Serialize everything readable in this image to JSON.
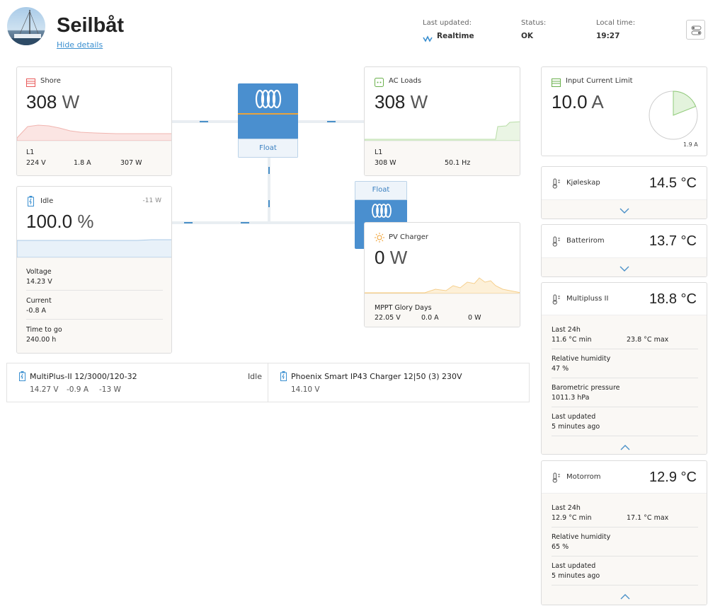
{
  "header": {
    "title": "Seilbåt",
    "hide_details": "Hide details",
    "last_updated_label": "Last updated:",
    "last_updated_value": "Realtime",
    "status_label": "Status:",
    "status_value": "OK",
    "local_time_label": "Local time:",
    "local_time_value": "19:27"
  },
  "shore": {
    "title": "Shore",
    "value": "308",
    "unit": "W",
    "phase": "L1",
    "volts": "224 V",
    "amps": "1.8 A",
    "watts": "307 W"
  },
  "ac_loads": {
    "title": "AC Loads",
    "value": "308",
    "unit": "W",
    "phase": "L1",
    "watts": "308 W",
    "freq": "50.1 Hz"
  },
  "inverter": {
    "state": "Float"
  },
  "battery": {
    "title": "Idle",
    "power": "-11 W",
    "value": "100.0",
    "unit": "%",
    "voltage_label": "Voltage",
    "voltage": "14.23 V",
    "current_label": "Current",
    "current": "-0.8 A",
    "ttg_label": "Time to go",
    "ttg": "240.00 h"
  },
  "charger": {
    "state": "Float"
  },
  "pv": {
    "title": "PV Charger",
    "value": "0",
    "unit": "W",
    "name": "MPPT Glory Days",
    "volts": "22.05 V",
    "amps": "0.0 A",
    "watts": "0 W"
  },
  "devices": [
    {
      "name": "MultiPlus-II 12/3000/120-32",
      "state": "Idle",
      "values": [
        "14.27 V",
        "-0.9 A",
        "-13 W"
      ]
    },
    {
      "name": "Phoenix Smart IP43 Charger 12|50 (3) 230V",
      "state": "",
      "values": [
        "14.10 V"
      ]
    }
  ],
  "input_limit": {
    "title": "Input Current Limit",
    "value": "10.0",
    "unit": "A",
    "gauge_label": "1.9 A",
    "fraction": 0.19
  },
  "sensors": [
    {
      "name": "Kjøleskap",
      "temp": "14.5",
      "unit": "°C"
    },
    {
      "name": "Batterirom",
      "temp": "13.7",
      "unit": "°C"
    },
    {
      "name": "Multipluss II",
      "temp": "18.8",
      "unit": "°C",
      "last24_label": "Last 24h",
      "min": "11.6 °C min",
      "max": "23.8 °C max",
      "rh_label": "Relative humidity",
      "rh": "47 %",
      "baro_label": "Barometric pressure",
      "baro": "1011.3 hPa",
      "upd_label": "Last updated",
      "upd": "5 minutes ago"
    },
    {
      "name": "Motorrom",
      "temp": "12.9",
      "unit": "°C",
      "last24_label": "Last 24h",
      "min": "12.9 °C min",
      "max": "17.1 °C max",
      "rh_label": "Relative humidity",
      "rh": "65 %",
      "upd_label": "Last updated",
      "upd": "5 minutes ago"
    }
  ]
}
